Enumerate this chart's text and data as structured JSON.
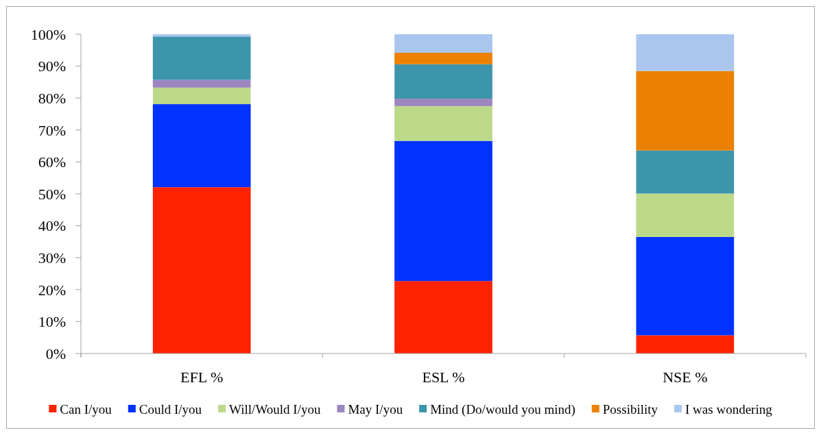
{
  "chart_data": {
    "type": "bar",
    "stacked": true,
    "categories": [
      "EFL %",
      "ESL %",
      "NSE %"
    ],
    "series": [
      {
        "name": "Can I/you",
        "color": "#ff2200",
        "values": [
          52.1,
          22.7,
          5.7
        ]
      },
      {
        "name": "Could I/you",
        "color": "#0033ff",
        "values": [
          26.0,
          43.9,
          30.8
        ]
      },
      {
        "name": "Will/Would I/you",
        "color": "#bcd98a",
        "values": [
          5.2,
          10.9,
          13.6
        ]
      },
      {
        "name": "May I/you",
        "color": "#9d86bf",
        "values": [
          2.4,
          2.3,
          0
        ]
      },
      {
        "name": "Mind (Do/would you mind)",
        "color": "#3d95ab",
        "values": [
          13.6,
          10.8,
          13.5
        ]
      },
      {
        "name": "Possibility",
        "color": "#eb8003",
        "values": [
          0,
          3.6,
          24.9
        ]
      },
      {
        "name": "I was wondering",
        "color": "#aac6ee",
        "values": [
          0.7,
          5.8,
          11.5
        ]
      }
    ],
    "ylim": [
      0,
      100
    ],
    "yticks": [
      {
        "value": 0,
        "label": "0%"
      },
      {
        "value": 10,
        "label": "10%"
      },
      {
        "value": 20,
        "label": "20%"
      },
      {
        "value": 30,
        "label": "30%"
      },
      {
        "value": 40,
        "label": "40%"
      },
      {
        "value": 50,
        "label": "50%"
      },
      {
        "value": 60,
        "label": "60%"
      },
      {
        "value": 70,
        "label": "70%"
      },
      {
        "value": 80,
        "label": "80%"
      },
      {
        "value": 90,
        "label": "90%"
      },
      {
        "value": 100,
        "label": "100%"
      }
    ],
    "grid": false,
    "legend": "bottom"
  }
}
